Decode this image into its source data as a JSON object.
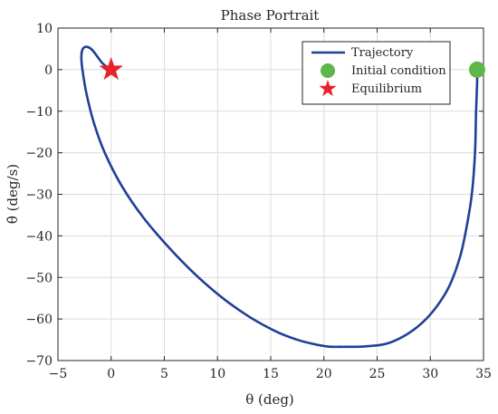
{
  "chart_data": {
    "type": "line",
    "title": "Phase Portrait",
    "xlabel": "θ (deg)",
    "ylabel": "θ̇ (deg/s)",
    "xlim": [
      -5,
      35
    ],
    "ylim": [
      -70,
      10
    ],
    "xticks": [
      -5,
      0,
      5,
      10,
      15,
      20,
      25,
      30,
      35
    ],
    "yticks": [
      -70,
      -60,
      -50,
      -40,
      -30,
      -20,
      -10,
      0,
      10
    ],
    "grid": true,
    "legend": {
      "placement": "top-right",
      "entries": [
        "Trajectory",
        "Initial condition",
        "Equilibrium"
      ]
    },
    "series": [
      {
        "name": "Trajectory",
        "color": "#1f3f98",
        "x": [
          34.4,
          34.4,
          34.3,
          34.2,
          33.9,
          33.4,
          32.8,
          31.8,
          30.6,
          29.2,
          27.6,
          25.8,
          23.8,
          21.5,
          20.3,
          19.0,
          17.5,
          15.5,
          13.0,
          10.5,
          8.0,
          5.5,
          3.0,
          1.0,
          -0.6,
          -1.6,
          -2.3,
          -2.7,
          -2.8,
          -2.7,
          -2.4,
          -2.0,
          -1.6,
          -1.2,
          -0.8,
          -0.3,
          0.0
        ],
        "y": [
          0,
          -3,
          -10,
          -20,
          -30,
          -38,
          -45,
          -52,
          -57,
          -61,
          -64,
          -66,
          -66.6,
          -66.7,
          -66.6,
          -66.0,
          -65.0,
          -63.0,
          -59.5,
          -55.0,
          -49.5,
          -43.0,
          -35.5,
          -28.0,
          -20.0,
          -13.0,
          -6.0,
          0.0,
          3.0,
          4.8,
          5.5,
          5.2,
          4.2,
          2.8,
          1.5,
          0.5,
          0.0
        ]
      }
    ],
    "markers": [
      {
        "name": "Initial condition",
        "shape": "circle",
        "color": "#5cb648",
        "x": 34.4,
        "y": 0
      },
      {
        "name": "Equilibrium",
        "shape": "star",
        "color": "#e8242a",
        "x": 0,
        "y": 0
      }
    ]
  }
}
